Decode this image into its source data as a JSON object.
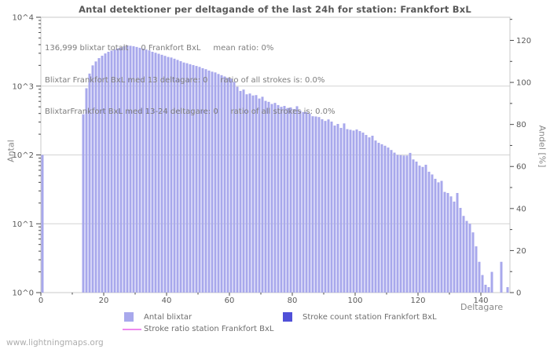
{
  "title": "Antal detektioner per deltagande of the last 24h for station: Frankfort BxL",
  "watermark": "www.lightningmaps.org",
  "annotations": {
    "line1": "136,999 blixtar totalt     0 Frankfort BxL     mean ratio: 0%",
    "line2": "Blixtar Frankfort BxL med 13 deltagare: 0     ratio of all strokes is: 0.0%",
    "line3": "BlixtarFrankfort BxL med 13-24 deltagare: 0     ratio of all strokes is: 0.0%"
  },
  "axes": {
    "left_label": "Antal",
    "right_label": "Andel [%]",
    "x_label": "Deltagare",
    "left_ticks": [
      "10^0",
      "10^1",
      "10^2",
      "10^3",
      "10^4"
    ],
    "right_ticks": [
      0,
      20,
      40,
      60,
      80,
      100,
      120
    ],
    "x_ticks": [
      0,
      20,
      40,
      60,
      80,
      100,
      120,
      140
    ]
  },
  "legend": [
    {
      "label": "Antal blixtar",
      "swatch": "square",
      "color": "#a8a8ec"
    },
    {
      "label": "Stroke count station Frankfort BxL",
      "swatch": "square",
      "color": "#5050d8"
    },
    {
      "label": "Stroke ratio station Frankfort BxL",
      "swatch": "line",
      "color": "#ee88ee"
    }
  ],
  "colors": {
    "bar": "#a8a8ec",
    "grid": "#d4d4d4",
    "border": "#c8c8c8",
    "tick": "#4a4a4a",
    "tick_label": "#5a5a5a",
    "title_text": "#585858",
    "annotation_text": "#7d7d7d"
  },
  "chart_data": {
    "type": "bar",
    "title": "Antal detektioner per deltagande of the last 24h for station: Frankfort BxL",
    "xlabel": "Deltagare",
    "ylabel_left": "Antal",
    "ylabel_right": "Andel [%]",
    "y_scale_left": "log10",
    "ylim_left": [
      1,
      10000
    ],
    "ylim_right": [
      0,
      131
    ],
    "xlim": [
      0,
      149
    ],
    "grid": true,
    "legend_position": "bottom",
    "bar_color": "#a8a8ec",
    "series_note": "points are [deltagare, antal_blixtar]; Stroke count and Stroke ratio series for station Frankfort BxL are zero (not visible)",
    "points": [
      [
        0,
        100
      ],
      [
        13,
        390
      ],
      [
        14,
        930
      ],
      [
        15,
        1520
      ],
      [
        16,
        2000
      ],
      [
        17,
        2280
      ],
      [
        18,
        2550
      ],
      [
        19,
        2760
      ],
      [
        20,
        2980
      ],
      [
        21,
        3150
      ],
      [
        22,
        3280
      ],
      [
        23,
        3400
      ],
      [
        24,
        3520
      ],
      [
        25,
        3650
      ],
      [
        26,
        3800
      ],
      [
        27,
        3900
      ],
      [
        28,
        3850
      ],
      [
        29,
        3800
      ],
      [
        30,
        3700
      ],
      [
        31,
        3600
      ],
      [
        32,
        3500
      ],
      [
        33,
        3400
      ],
      [
        34,
        3300
      ],
      [
        35,
        3150
      ],
      [
        36,
        3050
      ],
      [
        37,
        2950
      ],
      [
        38,
        2850
      ],
      [
        39,
        2750
      ],
      [
        40,
        2650
      ],
      [
        41,
        2600
      ],
      [
        42,
        2500
      ],
      [
        43,
        2400
      ],
      [
        44,
        2300
      ],
      [
        45,
        2200
      ],
      [
        46,
        2150
      ],
      [
        47,
        2080
      ],
      [
        48,
        2020
      ],
      [
        49,
        1960
      ],
      [
        50,
        1900
      ],
      [
        51,
        1820
      ],
      [
        52,
        1760
      ],
      [
        53,
        1680
      ],
      [
        54,
        1620
      ],
      [
        55,
        1580
      ],
      [
        56,
        1500
      ],
      [
        57,
        1440
      ],
      [
        58,
        1380
      ],
      [
        59,
        1320
      ],
      [
        60,
        1280
      ],
      [
        61,
        1150
      ],
      [
        62,
        980
      ],
      [
        63,
        850
      ],
      [
        64,
        890
      ],
      [
        65,
        760
      ],
      [
        66,
        780
      ],
      [
        67,
        730
      ],
      [
        68,
        740
      ],
      [
        69,
        660
      ],
      [
        70,
        700
      ],
      [
        71,
        610
      ],
      [
        72,
        590
      ],
      [
        73,
        550
      ],
      [
        74,
        570
      ],
      [
        75,
        530
      ],
      [
        76,
        500
      ],
      [
        77,
        515
      ],
      [
        78,
        480
      ],
      [
        79,
        490
      ],
      [
        80,
        465
      ],
      [
        81,
        510
      ],
      [
        82,
        440
      ],
      [
        83,
        420
      ],
      [
        84,
        420
      ],
      [
        85,
        400
      ],
      [
        86,
        365
      ],
      [
        87,
        362
      ],
      [
        88,
        355
      ],
      [
        89,
        330
      ],
      [
        90,
        312
      ],
      [
        91,
        328
      ],
      [
        92,
        305
      ],
      [
        93,
        267
      ],
      [
        94,
        282
      ],
      [
        95,
        247
      ],
      [
        96,
        287
      ],
      [
        97,
        237
      ],
      [
        98,
        232
      ],
      [
        99,
        226
      ],
      [
        100,
        234
      ],
      [
        101,
        222
      ],
      [
        102,
        211
      ],
      [
        103,
        195
      ],
      [
        104,
        180
      ],
      [
        105,
        190
      ],
      [
        106,
        162
      ],
      [
        107,
        150
      ],
      [
        108,
        143
      ],
      [
        109,
        136
      ],
      [
        110,
        128
      ],
      [
        111,
        118
      ],
      [
        112,
        108
      ],
      [
        113,
        100
      ],
      [
        114,
        99
      ],
      [
        115,
        98
      ],
      [
        116,
        98
      ],
      [
        117,
        107
      ],
      [
        118,
        86
      ],
      [
        119,
        80
      ],
      [
        120,
        70
      ],
      [
        121,
        67
      ],
      [
        122,
        72
      ],
      [
        123,
        57
      ],
      [
        124,
        52
      ],
      [
        125,
        45
      ],
      [
        126,
        40
      ],
      [
        127,
        42
      ],
      [
        128,
        29
      ],
      [
        129,
        28
      ],
      [
        130,
        25
      ],
      [
        131,
        21
      ],
      [
        132,
        28
      ],
      [
        133,
        17
      ],
      [
        134,
        13
      ],
      [
        135,
        11
      ],
      [
        136,
        10
      ],
      [
        137,
        7.5
      ],
      [
        138,
        4.7
      ],
      [
        139,
        2.8
      ],
      [
        140,
        1.8
      ],
      [
        141,
        1.3
      ],
      [
        142,
        1.2
      ],
      [
        143,
        2
      ],
      [
        146,
        2.8
      ],
      [
        148,
        1.2
      ]
    ]
  }
}
